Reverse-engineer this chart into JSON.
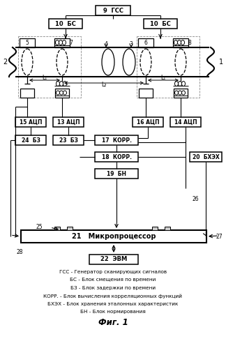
{
  "fig_width": 3.24,
  "fig_height": 4.99,
  "dpi": 100,
  "bg_color": "#ffffff",
  "legend_items": [
    [
      "ГСС",
      "Генератор сканирующих сигналов"
    ],
    [
      "БС",
      "Блок смещения по времени"
    ],
    [
      "БЗ",
      "Блок задержки по времени"
    ],
    [
      "КОРР.",
      "Блок вычисления корреляционных функций"
    ],
    [
      "БХЭХ",
      "Блок хранения эталонных характеристик"
    ],
    [
      "БН",
      "Блок нормирования"
    ]
  ],
  "fig_title": "Фиг. 1"
}
